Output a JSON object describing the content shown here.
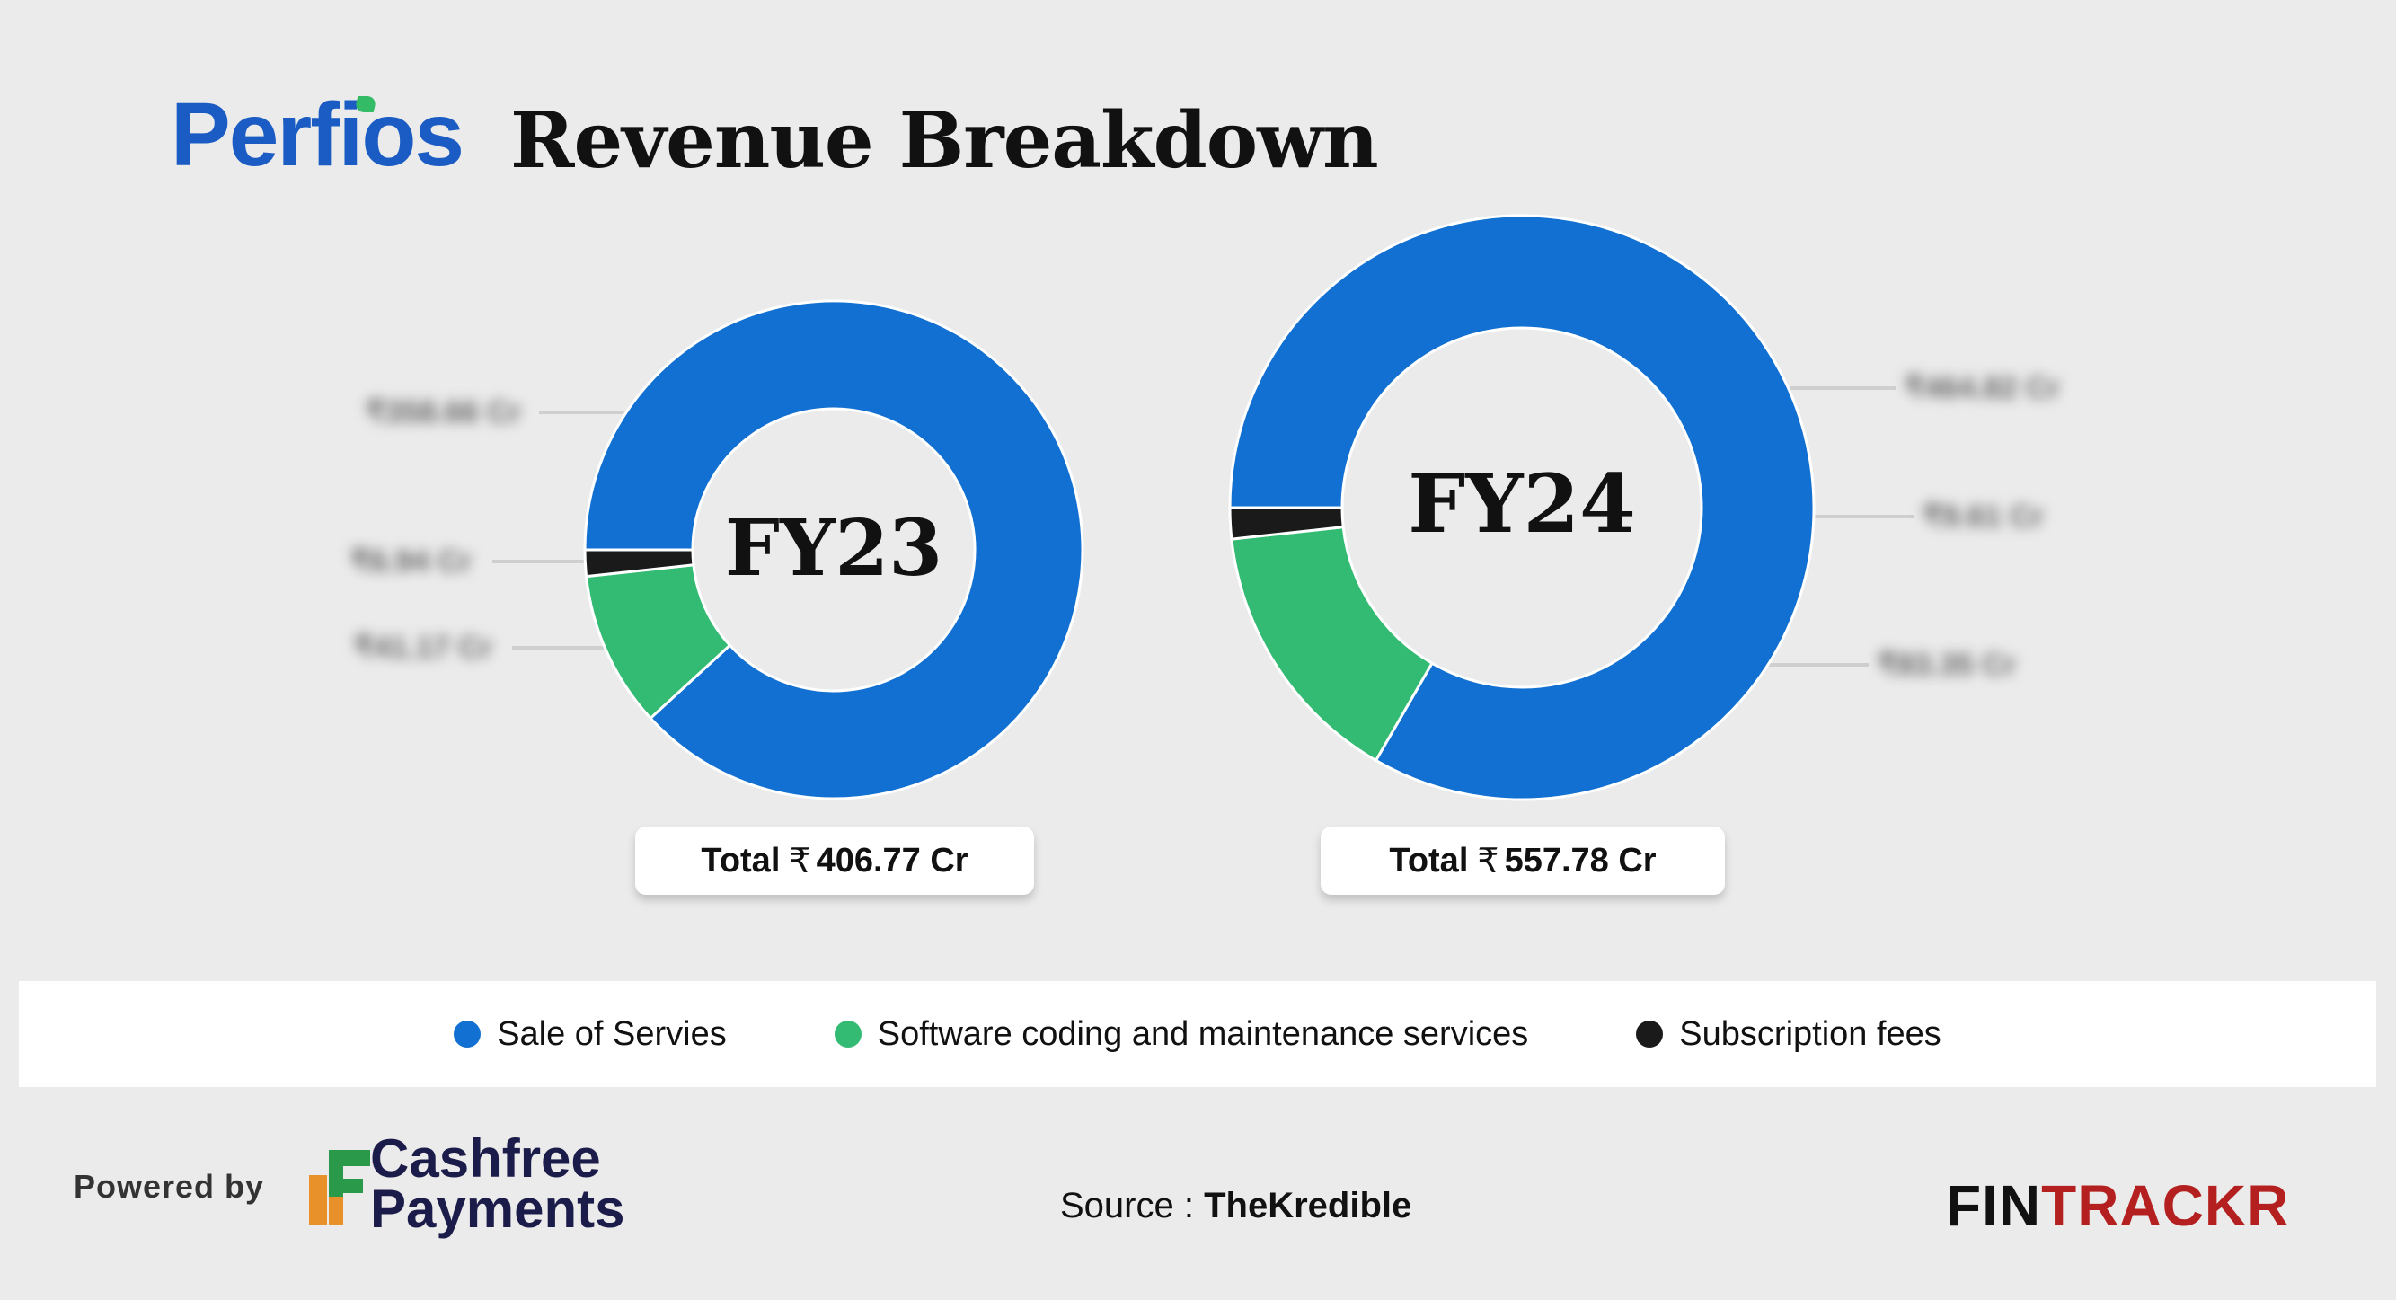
{
  "header": {
    "brand": "Perfios",
    "title": "Revenue Breakdown"
  },
  "chart_data": [
    {
      "type": "pie",
      "title": "FY23",
      "total_label": "Total",
      "total_currency": "₹",
      "total_value": "406.77 Cr",
      "categories": [
        "Sale of Servies",
        "Software coding and maintenance services",
        "Subscription fees"
      ],
      "values": [
        358.66,
        41.17,
        6.94
      ],
      "colors": [
        "#1170d1",
        "#33bb73",
        "#1a1a1a"
      ],
      "slice_labels": [
        "₹358.66 Cr",
        "₹41.17 Cr",
        "₹6.94 Cr"
      ]
    },
    {
      "type": "pie",
      "title": "FY24",
      "total_label": "Total",
      "total_currency": "₹",
      "total_value": "557.78 Cr",
      "categories": [
        "Sale of Servies",
        "Software coding and maintenance services",
        "Subscription fees"
      ],
      "values": [
        464.82,
        83.35,
        9.61
      ],
      "colors": [
        "#1170d1",
        "#33bb73",
        "#1a1a1a"
      ],
      "slice_labels": [
        "₹464.82 Cr",
        "₹83.35 Cr",
        "₹9.61 Cr"
      ]
    }
  ],
  "legend": [
    {
      "label": "Sale of Servies",
      "color": "#1170d1"
    },
    {
      "label": "Software coding and maintenance services",
      "color": "#33bb73"
    },
    {
      "label": "Subscription fees",
      "color": "#1a1a1a"
    }
  ],
  "footer": {
    "powered_by": "Powered by",
    "sponsor_line1": "Cashfree",
    "sponsor_line2": "Payments",
    "source_label": "Source : ",
    "source_name": "TheKredible",
    "fintrackr_part1": "FIN",
    "fintrackr_part2": "TRACKR"
  }
}
